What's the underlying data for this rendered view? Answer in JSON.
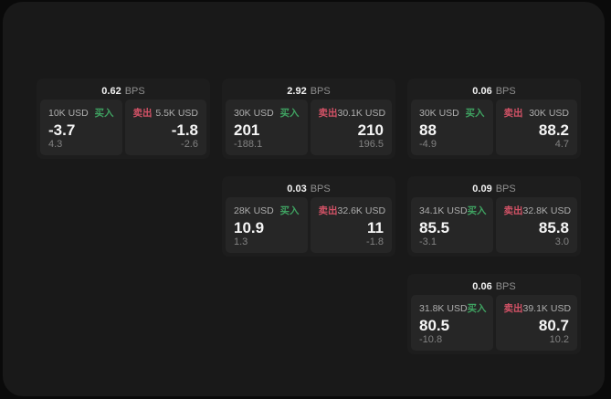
{
  "labels": {
    "bps_unit": "BPS",
    "buy": "买入",
    "sell": "卖出"
  },
  "colors": {
    "buy_green": "#3fa261",
    "sell_red": "#d25266",
    "panel_bg": "#191919",
    "card_bg": "#1d1d1d",
    "subpanel_bg": "#262626"
  },
  "cards": [
    {
      "bps": "0.62",
      "buy_amount": "10K USD",
      "buy_price": "-3.7",
      "buy_delta": "4.3",
      "sell_amount": "5.5K USD",
      "sell_price": "-1.8",
      "sell_delta": "-2.6",
      "grid": {
        "col": 1,
        "row": 1
      }
    },
    {
      "bps": "2.92",
      "buy_amount": "30K USD",
      "buy_price": "201",
      "buy_delta": "-188.1",
      "sell_amount": "30.1K USD",
      "sell_price": "210",
      "sell_delta": "196.5",
      "grid": {
        "col": 2,
        "row": 1
      }
    },
    {
      "bps": "0.06",
      "buy_amount": "30K USD",
      "buy_price": "88",
      "buy_delta": "-4.9",
      "sell_amount": "30K USD",
      "sell_price": "88.2",
      "sell_delta": "4.7",
      "grid": {
        "col": 3,
        "row": 1
      }
    },
    {
      "bps": "0.03",
      "buy_amount": "28K USD",
      "buy_price": "10.9",
      "buy_delta": "1.3",
      "sell_amount": "32.6K USD",
      "sell_price": "11",
      "sell_delta": "-1.8",
      "grid": {
        "col": 2,
        "row": 2
      }
    },
    {
      "bps": "0.09",
      "buy_amount": "34.1K USD",
      "buy_price": "85.5",
      "buy_delta": "-3.1",
      "sell_amount": "32.8K USD",
      "sell_price": "85.8",
      "sell_delta": "3.0",
      "grid": {
        "col": 3,
        "row": 2
      }
    },
    {
      "bps": "0.06",
      "buy_amount": "31.8K USD",
      "buy_price": "80.5",
      "buy_delta": "-10.8",
      "sell_amount": "39.1K USD",
      "sell_price": "80.7",
      "sell_delta": "10.2",
      "grid": {
        "col": 3,
        "row": 3
      }
    }
  ]
}
